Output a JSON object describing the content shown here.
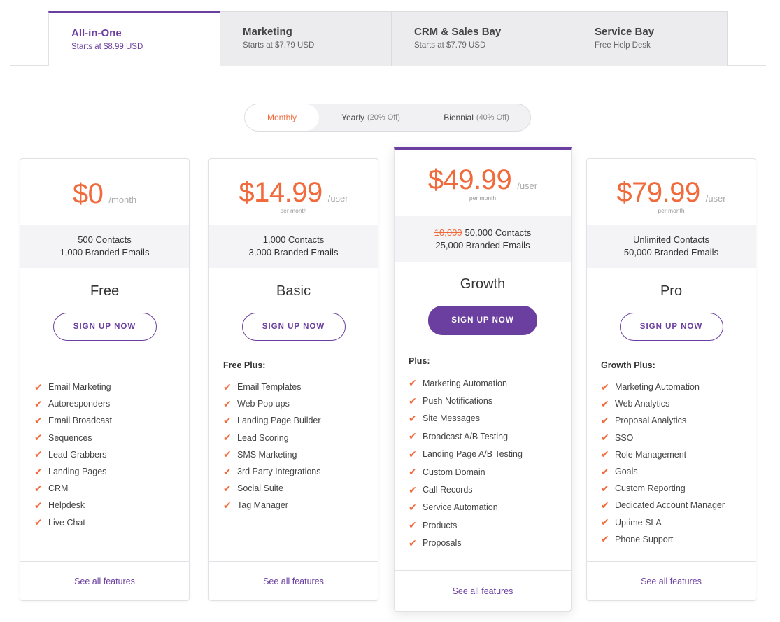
{
  "tabs": [
    {
      "title": "All-in-One",
      "subtitle": "Starts at $8.99 USD"
    },
    {
      "title": "Marketing",
      "subtitle": "Starts at $7.79 USD"
    },
    {
      "title": "CRM & Sales Bay",
      "subtitle": "Starts at $7.79 USD"
    },
    {
      "title": "Service Bay",
      "subtitle": "Free Help Desk"
    }
  ],
  "billing": {
    "monthly": "Monthly",
    "yearly": "Yearly",
    "yearly_off": "(20% Off)",
    "biennial": "Biennial",
    "biennial_off": "(40% Off)"
  },
  "plans": [
    {
      "price": "$0",
      "unit": "/month",
      "per": "",
      "quota_strike": "",
      "quota_line1": "500 Contacts",
      "quota_line2": "1,000 Branded Emails",
      "name": "Free",
      "button": "SIGN UP NOW",
      "feature_head": "",
      "features": [
        "Email Marketing",
        "Autoresponders",
        "Email Broadcast",
        "Sequences",
        "Lead Grabbers",
        "Landing Pages",
        "CRM",
        "Helpdesk",
        "Live Chat"
      ],
      "footer": "See all features"
    },
    {
      "price": "$14.99",
      "unit": "/user",
      "per": "per month",
      "quota_strike": "",
      "quota_line1": "1,000 Contacts",
      "quota_line2": "3,000 Branded Emails",
      "name": "Basic",
      "button": "SIGN UP NOW",
      "feature_head": "Free Plus:",
      "features": [
        "Email Templates",
        "Web Pop ups",
        "Landing Page Builder",
        "Lead Scoring",
        "SMS Marketing",
        "3rd Party Integrations",
        "Social Suite",
        "Tag Manager"
      ],
      "footer": "See all features"
    },
    {
      "price": "$49.99",
      "unit": "/user",
      "per": "per month",
      "quota_strike": "10,000",
      "quota_line1": "50,000 Contacts",
      "quota_line2": "25,000 Branded Emails",
      "name": "Growth",
      "button": "SIGN UP NOW",
      "feature_head": "Plus:",
      "features": [
        "Marketing Automation",
        "Push Notifications",
        "Site Messages",
        "Broadcast A/B Testing",
        "Landing Page A/B Testing",
        "Custom Domain",
        "Call Records",
        "Service Automation",
        "Products",
        "Proposals"
      ],
      "footer": "See all features"
    },
    {
      "price": "$79.99",
      "unit": "/user",
      "per": "per month",
      "quota_strike": "",
      "quota_line1": "Unlimited Contacts",
      "quota_line2": "50,000 Branded Emails",
      "name": "Pro",
      "button": "SIGN UP NOW",
      "feature_head": "Growth Plus:",
      "features": [
        "Marketing Automation",
        "Web Analytics",
        "Proposal Analytics",
        "SSO",
        "Role Management",
        "Goals",
        "Custom Reporting",
        "Dedicated Account Manager",
        "Uptime SLA",
        "Phone Support"
      ],
      "footer": "See all features"
    }
  ],
  "colors": {
    "accent": "#6b3fa0",
    "price": "#f06a3c",
    "check": "#f06a3c"
  },
  "check_icon": "checkmark-icon"
}
